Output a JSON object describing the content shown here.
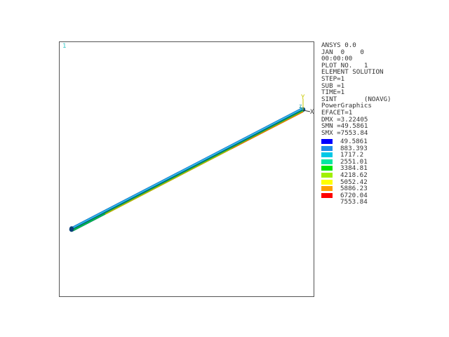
{
  "viewport": {
    "window_number": "1"
  },
  "triad": {
    "y_label": "Y",
    "z_label": "Z",
    "x_label": "X"
  },
  "info": {
    "program": "ANSYS 0.0",
    "date": "JAN  0    0",
    "time": "00:00:00",
    "plot_no": "PLOT NO.   1",
    "solution": "ELEMENT SOLUTION",
    "step": "STEP=1",
    "sub": "SUB =1",
    "time_value": "TIME=1",
    "sint": "SINT       (NOAVG)",
    "graphics": "PowerGraphics",
    "efacet": "EFACET=1",
    "dmx": "DMX =3.22405",
    "smn": "SMN =49.5861",
    "smx": "SMX =7553.84"
  },
  "colors": {
    "band1": "#0000ff",
    "band2": "#1e8fe6",
    "band3": "#00c8e6",
    "band4": "#00e6a0",
    "band5": "#00e600",
    "band6": "#a0f000",
    "band7": "#ffff00",
    "band8": "#ffa000",
    "band9": "#ff0000"
  },
  "contour_levels": [
    "49.5861",
    "883.393",
    "1717.2",
    "2551.01",
    "3384.81",
    "4218.62",
    "5052.42",
    "5886.23",
    "6720.04",
    "7553.84"
  ]
}
